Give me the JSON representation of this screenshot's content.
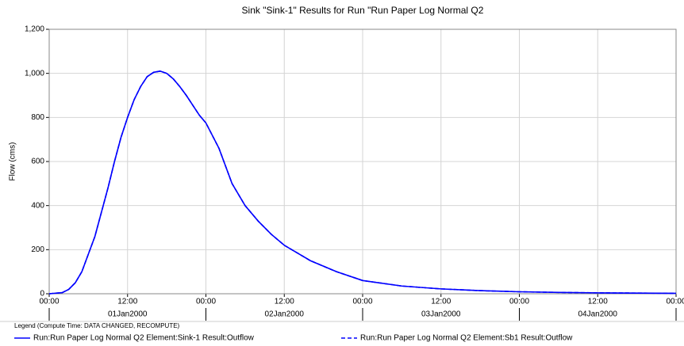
{
  "chart_data": {
    "type": "line",
    "title": "Sink \"Sink-1\" Results for Run \"Run Paper Log Normal Q2",
    "y_label": "Flow (cms)",
    "legend_title": "Legend (Compute Time: DATA CHANGED, RECOMPUTE)",
    "x": [
      "2000-01-01T00:00",
      "2000-01-01T02:00",
      "2000-01-01T03:00",
      "2000-01-01T04:00",
      "2000-01-01T05:00",
      "2000-01-01T06:00",
      "2000-01-01T07:00",
      "2000-01-01T08:00",
      "2000-01-01T09:00",
      "2000-01-01T10:00",
      "2000-01-01T11:00",
      "2000-01-01T12:00",
      "2000-01-01T13:00",
      "2000-01-01T14:00",
      "2000-01-01T15:00",
      "2000-01-01T16:00",
      "2000-01-01T17:00",
      "2000-01-01T18:00",
      "2000-01-01T19:00",
      "2000-01-01T20:00",
      "2000-01-01T21:00",
      "2000-01-01T22:00",
      "2000-01-01T23:00",
      "2000-01-02T00:00",
      "2000-01-02T02:00",
      "2000-01-02T04:00",
      "2000-01-02T06:00",
      "2000-01-02T08:00",
      "2000-01-02T10:00",
      "2000-01-02T12:00",
      "2000-01-02T16:00",
      "2000-01-02T20:00",
      "2000-01-03T00:00",
      "2000-01-03T06:00",
      "2000-01-03T12:00",
      "2000-01-03T18:00",
      "2000-01-04T00:00",
      "2000-01-04T06:00",
      "2000-01-04T12:00",
      "2000-01-04T18:00",
      "2000-01-05T00:00"
    ],
    "series": [
      {
        "name": "Run:Run Paper Log Normal Q2 Element:Sink-1 Result:Outflow",
        "color": "#0000ff",
        "line_style": "solid",
        "values": [
          0,
          5,
          20,
          50,
          100,
          180,
          260,
          370,
          480,
          600,
          710,
          800,
          880,
          940,
          985,
          1005,
          1010,
          1000,
          975,
          940,
          900,
          855,
          810,
          775,
          660,
          500,
          400,
          330,
          270,
          220,
          150,
          100,
          60,
          35,
          22,
          14,
          9,
          6,
          4,
          3,
          2
        ]
      },
      {
        "name": "Run:Run Paper Log Normal Q2 Element:Sb1 Result:Outflow",
        "color": "#0000ff",
        "line_style": "dashed",
        "values": [
          0,
          5,
          20,
          50,
          100,
          180,
          260,
          370,
          480,
          600,
          710,
          800,
          880,
          940,
          985,
          1005,
          1010,
          1000,
          975,
          940,
          900,
          855,
          810,
          775,
          660,
          500,
          400,
          330,
          270,
          220,
          150,
          100,
          60,
          35,
          22,
          14,
          9,
          6,
          4,
          3,
          2
        ]
      }
    ],
    "xlim": [
      "2000-01-01T00:00",
      "2000-01-05T00:00"
    ],
    "xticks": [
      {
        "value": "2000-01-01T00:00",
        "label": "00:00"
      },
      {
        "value": "2000-01-01T12:00",
        "label": "12:00"
      },
      {
        "value": "2000-01-02T00:00",
        "label": "00:00"
      },
      {
        "value": "2000-01-02T12:00",
        "label": "12:00"
      },
      {
        "value": "2000-01-03T00:00",
        "label": "00:00"
      },
      {
        "value": "2000-01-03T12:00",
        "label": "12:00"
      },
      {
        "value": "2000-01-04T00:00",
        "label": "00:00"
      },
      {
        "value": "2000-01-04T12:00",
        "label": "12:00"
      },
      {
        "value": "2000-01-05T00:00",
        "label": "00:00"
      }
    ],
    "day_labels": [
      {
        "value": "2000-01-01T12:00",
        "label": "01Jan2000"
      },
      {
        "value": "2000-01-02T12:00",
        "label": "02Jan2000"
      },
      {
        "value": "2000-01-03T12:00",
        "label": "03Jan2000"
      },
      {
        "value": "2000-01-04T12:00",
        "label": "04Jan2000"
      }
    ],
    "ylim": [
      0,
      1200
    ],
    "yticks": [
      0,
      200,
      400,
      600,
      800,
      {
        "value": 1000,
        "label": "1,000"
      },
      {
        "value": 1200,
        "label": "1,200"
      }
    ],
    "grid": true
  }
}
